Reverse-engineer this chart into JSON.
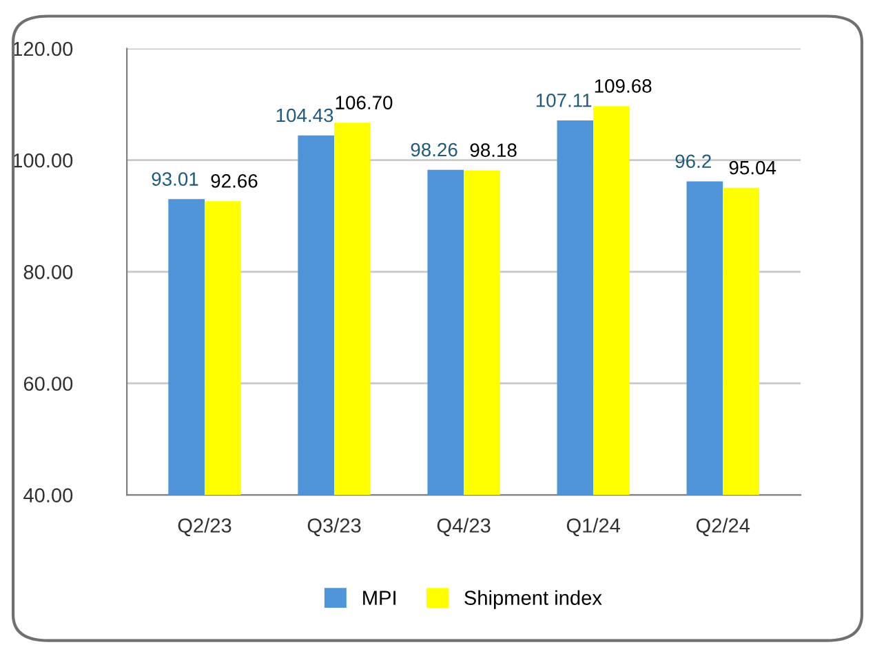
{
  "chart_data": {
    "type": "bar",
    "categories": [
      "Q2/23",
      "Q3/23",
      "Q4/23",
      "Q1/24",
      "Q2/24"
    ],
    "series": [
      {
        "name": "MPI",
        "color": "#4f94d8",
        "values": [
          93.01,
          104.43,
          98.26,
          107.11,
          96.2
        ],
        "value_labels": [
          "93.01",
          "104.43",
          "98.26",
          "107.11",
          "96.2"
        ]
      },
      {
        "name": "Shipment index",
        "color": "#ffff00",
        "values": [
          92.66,
          106.7,
          98.18,
          109.68,
          95.04
        ],
        "value_labels": [
          "92.66",
          "106.70",
          "98.18",
          "109.68",
          "95.04"
        ]
      }
    ],
    "ylim": [
      40,
      120
    ],
    "yticks": [
      {
        "value": 40,
        "label": "40.00"
      },
      {
        "value": 60,
        "label": "60.00"
      },
      {
        "value": 80,
        "label": "80.00"
      },
      {
        "value": 100,
        "label": "100.00"
      },
      {
        "value": 120,
        "label": "120.00"
      }
    ],
    "grid": "y",
    "legend": "bottom"
  }
}
